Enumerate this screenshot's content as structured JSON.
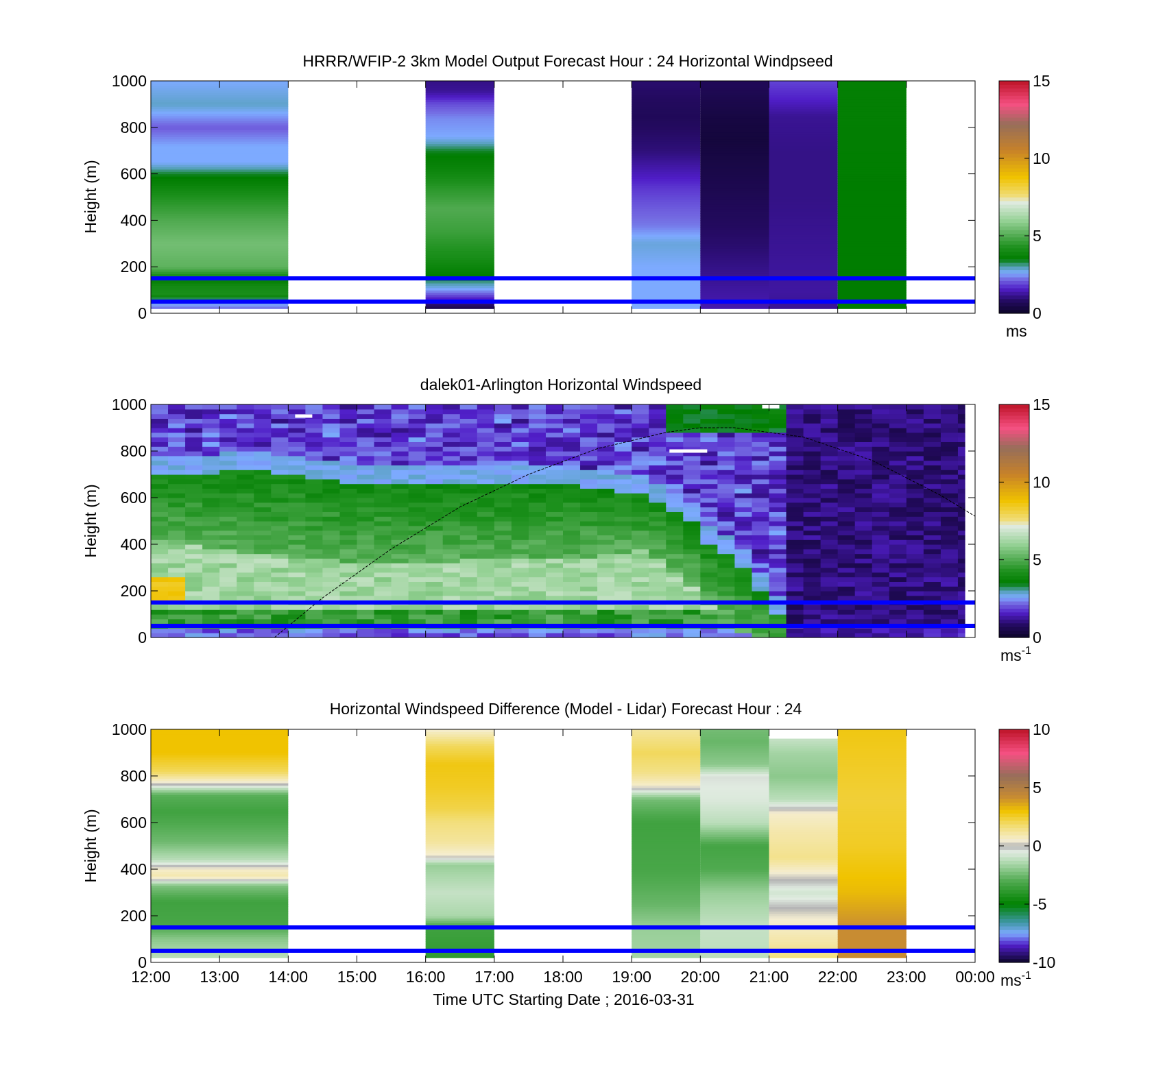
{
  "figure": {
    "xlabel": "Time UTC  Starting Date ; 2016-03-31",
    "x_ticks": [
      "12:00",
      "13:00",
      "14:00",
      "15:00",
      "16:00",
      "17:00",
      "18:00",
      "19:00",
      "20:00",
      "21:00",
      "22:00",
      "23:00",
      "00:00"
    ]
  },
  "chart_data": [
    {
      "type": "heatmap",
      "title": "HRRR/WFIP-2 3km Model Output   Forecast Hour : 24 Horizontal Windpseed",
      "xlabel": "",
      "ylabel": "Height (m)",
      "xlim_hours": [
        12,
        24
      ],
      "ylim": [
        0,
        1000
      ],
      "y_ticks": [
        0,
        200,
        400,
        600,
        800,
        1000
      ],
      "colorbar": {
        "label": "ms",
        "superscript": "",
        "ticks": [
          0,
          5,
          10,
          15
        ],
        "range": [
          0,
          15
        ]
      },
      "reference_lines_m": [
        150,
        50
      ],
      "reference_line_color": "#0000ff",
      "columns": [
        {
          "hour_start": 12,
          "hour_end": 14,
          "profile": [
            [
              20,
              2.2
            ],
            [
              60,
              3.0
            ],
            [
              80,
              4.2
            ],
            [
              120,
              4.0
            ],
            [
              140,
              3.6
            ],
            [
              200,
              5.2
            ],
            [
              300,
              5.5
            ],
            [
              400,
              5.0
            ],
            [
              500,
              4.3
            ],
            [
              560,
              3.7
            ],
            [
              600,
              3.4
            ],
            [
              650,
              2.6
            ],
            [
              720,
              2.6
            ],
            [
              800,
              2.1
            ],
            [
              900,
              2.9
            ],
            [
              1000,
              2.6
            ]
          ]
        },
        {
          "hour_start": 16,
          "hour_end": 17,
          "profile": [
            [
              20,
              0.5
            ],
            [
              50,
              1.2
            ],
            [
              80,
              2.0
            ],
            [
              110,
              2.7
            ],
            [
              150,
              3.4
            ],
            [
              250,
              4.2
            ],
            [
              350,
              4.7
            ],
            [
              450,
              5.0
            ],
            [
              550,
              4.4
            ],
            [
              620,
              3.8
            ],
            [
              700,
              3.4
            ],
            [
              760,
              2.6
            ],
            [
              840,
              2.4
            ],
            [
              900,
              2.0
            ],
            [
              960,
              1.2
            ],
            [
              1000,
              1.1
            ]
          ]
        },
        {
          "hour_start": 19,
          "hour_end": 20,
          "profile": [
            [
              20,
              2.6
            ],
            [
              80,
              2.6
            ],
            [
              200,
              2.6
            ],
            [
              300,
              2.8
            ],
            [
              380,
              2.3
            ],
            [
              450,
              2.1
            ],
            [
              540,
              1.8
            ],
            [
              600,
              1.5
            ],
            [
              700,
              1.0
            ],
            [
              850,
              0.7
            ],
            [
              1000,
              0.9
            ]
          ]
        },
        {
          "hour_start": 20,
          "hour_end": 21,
          "profile": [
            [
              20,
              1.4
            ],
            [
              100,
              1.3
            ],
            [
              200,
              1.1
            ],
            [
              300,
              0.9
            ],
            [
              450,
              0.7
            ],
            [
              600,
              0.5
            ],
            [
              750,
              0.3
            ],
            [
              850,
              0.4
            ],
            [
              1000,
              0.7
            ]
          ]
        },
        {
          "hour_start": 21,
          "hour_end": 22,
          "profile": [
            [
              20,
              1.2
            ],
            [
              100,
              1.3
            ],
            [
              300,
              1.2
            ],
            [
              500,
              1.1
            ],
            [
              700,
              1.1
            ],
            [
              850,
              1.2
            ],
            [
              920,
              1.6
            ],
            [
              1000,
              1.9
            ]
          ]
        },
        {
          "hour_start": 22,
          "hour_end": 23,
          "profile": [
            [
              20,
              3.5
            ],
            [
              100,
              3.5
            ],
            [
              500,
              3.5
            ],
            [
              1000,
              3.6
            ]
          ]
        }
      ]
    },
    {
      "type": "heatmap",
      "title": "dalek01-Arlington  Horizontal Windspeed",
      "xlabel": "",
      "ylabel": "Height (m)",
      "xlim_hours": [
        12,
        24
      ],
      "ylim": [
        0,
        1000
      ],
      "y_ticks": [
        0,
        200,
        400,
        600,
        800,
        1000
      ],
      "colorbar": {
        "label": "ms",
        "superscript": "-1",
        "ticks": [
          0,
          5,
          10,
          15
        ],
        "range": [
          0,
          15
        ]
      },
      "reference_lines_m": [
        150,
        50
      ],
      "reference_line_color": "#0000ff",
      "lidar_time_step_hours": 0.25,
      "lidar_end_hour": 23.85,
      "lidar_height_step_m": 20,
      "interfaces": [
        {
          "hour": 12.0,
          "top_m": 730,
          "mid_m": 420
        },
        {
          "hour": 13.5,
          "top_m": 760,
          "mid_m": 360
        },
        {
          "hour": 15.0,
          "top_m": 700,
          "mid_m": 320
        },
        {
          "hour": 16.5,
          "top_m": 690,
          "mid_m": 330
        },
        {
          "hour": 18.0,
          "top_m": 700,
          "mid_m": 330
        },
        {
          "hour": 19.2,
          "top_m": 650,
          "mid_m": 380
        },
        {
          "hour": 19.8,
          "top_m": 560,
          "mid_m": 250
        },
        {
          "hour": 20.1,
          "top_m": 450,
          "mid_m": 150
        },
        {
          "hour": 20.5,
          "top_m": 380,
          "mid_m": 40
        },
        {
          "hour": 21.5,
          "top_m": 0,
          "mid_m": -100
        },
        {
          "hour": 24.0,
          "top_m": 0,
          "mid_m": -100
        }
      ],
      "boundary_layer_curve": [
        [
          13.8,
          0
        ],
        [
          14.5,
          170
        ],
        [
          15.5,
          380
        ],
        [
          16.5,
          560
        ],
        [
          17.5,
          700
        ],
        [
          18.5,
          810
        ],
        [
          19.5,
          880
        ],
        [
          20.0,
          900
        ],
        [
          20.5,
          900
        ],
        [
          21.5,
          860
        ],
        [
          22.5,
          760
        ],
        [
          23.5,
          610
        ],
        [
          24.0,
          520
        ]
      ],
      "missing_marks": [
        {
          "hour_start": 14.1,
          "hour_end": 14.35,
          "height_m": 950
        },
        {
          "hour_start": 19.55,
          "hour_end": 20.1,
          "height_m": 800
        },
        {
          "hour_start": 20.9,
          "hour_end": 21.15,
          "height_m": 990
        }
      ]
    },
    {
      "type": "heatmap",
      "title": "Horizontal Windspeed Difference (Model - Lidar) Forecast Hour : 24",
      "xlabel": "Time UTC  Starting Date ; 2016-03-31",
      "ylabel": "Height (m)",
      "xlim_hours": [
        12,
        24
      ],
      "ylim": [
        0,
        1000
      ],
      "y_ticks": [
        0,
        200,
        400,
        600,
        800,
        1000
      ],
      "colorbar": {
        "label": "ms",
        "superscript": "-1",
        "ticks": [
          -10,
          -5,
          0,
          5,
          10
        ],
        "range": [
          -10,
          10
        ]
      },
      "reference_lines_m": [
        150,
        50
      ],
      "reference_line_color": "#0000ff",
      "columns": [
        {
          "hour_start": 12,
          "hour_end": 14,
          "profile": [
            [
              20,
              -1.2
            ],
            [
              100,
              -2.0
            ],
            [
              160,
              -3.2
            ],
            [
              260,
              -3.4
            ],
            [
              330,
              -2.2
            ],
            [
              370,
              1.0
            ],
            [
              400,
              0.6
            ],
            [
              440,
              -1.2
            ],
            [
              520,
              -2.5
            ],
            [
              650,
              -3.4
            ],
            [
              720,
              -2.8
            ],
            [
              770,
              0.3
            ],
            [
              820,
              2.0
            ],
            [
              900,
              3.0
            ],
            [
              1000,
              3.0
            ]
          ]
        },
        {
          "hour_start": 16,
          "hour_end": 17,
          "profile": [
            [
              20,
              -3.8
            ],
            [
              150,
              -3.4
            ],
            [
              200,
              -1.5
            ],
            [
              300,
              -1.0
            ],
            [
              420,
              -1.8
            ],
            [
              460,
              0.5
            ],
            [
              520,
              1.2
            ],
            [
              600,
              1.6
            ],
            [
              660,
              2.2
            ],
            [
              750,
              2.6
            ],
            [
              850,
              2.8
            ],
            [
              930,
              2.0
            ],
            [
              1000,
              0.5
            ]
          ]
        },
        {
          "hour_start": 19,
          "hour_end": 20,
          "profile": [
            [
              20,
              -1.6
            ],
            [
              150,
              -1.8
            ],
            [
              250,
              -2.6
            ],
            [
              400,
              -3.2
            ],
            [
              600,
              -3.4
            ],
            [
              700,
              -2.4
            ],
            [
              760,
              0.6
            ],
            [
              820,
              1.5
            ],
            [
              900,
              2.0
            ],
            [
              1000,
              1.2
            ]
          ]
        },
        {
          "hour_start": 20,
          "hour_end": 21,
          "profile": [
            [
              20,
              -1.2
            ],
            [
              150,
              -1.0
            ],
            [
              300,
              -1.8
            ],
            [
              400,
              -3.0
            ],
            [
              500,
              -3.3
            ],
            [
              600,
              -1.2
            ],
            [
              700,
              -0.6
            ],
            [
              800,
              -0.4
            ],
            [
              850,
              -2.0
            ],
            [
              950,
              -2.6
            ],
            [
              1000,
              -2.4
            ]
          ]
        },
        {
          "hour_start": 21,
          "hour_end": 22,
          "profile": [
            [
              20,
              1.6
            ],
            [
              100,
              1.0
            ],
            [
              200,
              0.4
            ],
            [
              300,
              -0.8
            ],
            [
              380,
              0.4
            ],
            [
              450,
              1.4
            ],
            [
              560,
              1.0
            ],
            [
              640,
              0.6
            ],
            [
              700,
              -1.2
            ],
            [
              800,
              -2.0
            ],
            [
              900,
              -1.6
            ],
            [
              960,
              -1.0
            ]
          ]
        },
        {
          "hour_start": 22,
          "hour_end": 23,
          "profile": [
            [
              20,
              4.2
            ],
            [
              150,
              4.2
            ],
            [
              300,
              3.2
            ],
            [
              500,
              2.6
            ],
            [
              700,
              2.4
            ],
            [
              850,
              2.6
            ],
            [
              1000,
              2.8
            ]
          ]
        }
      ]
    }
  ]
}
